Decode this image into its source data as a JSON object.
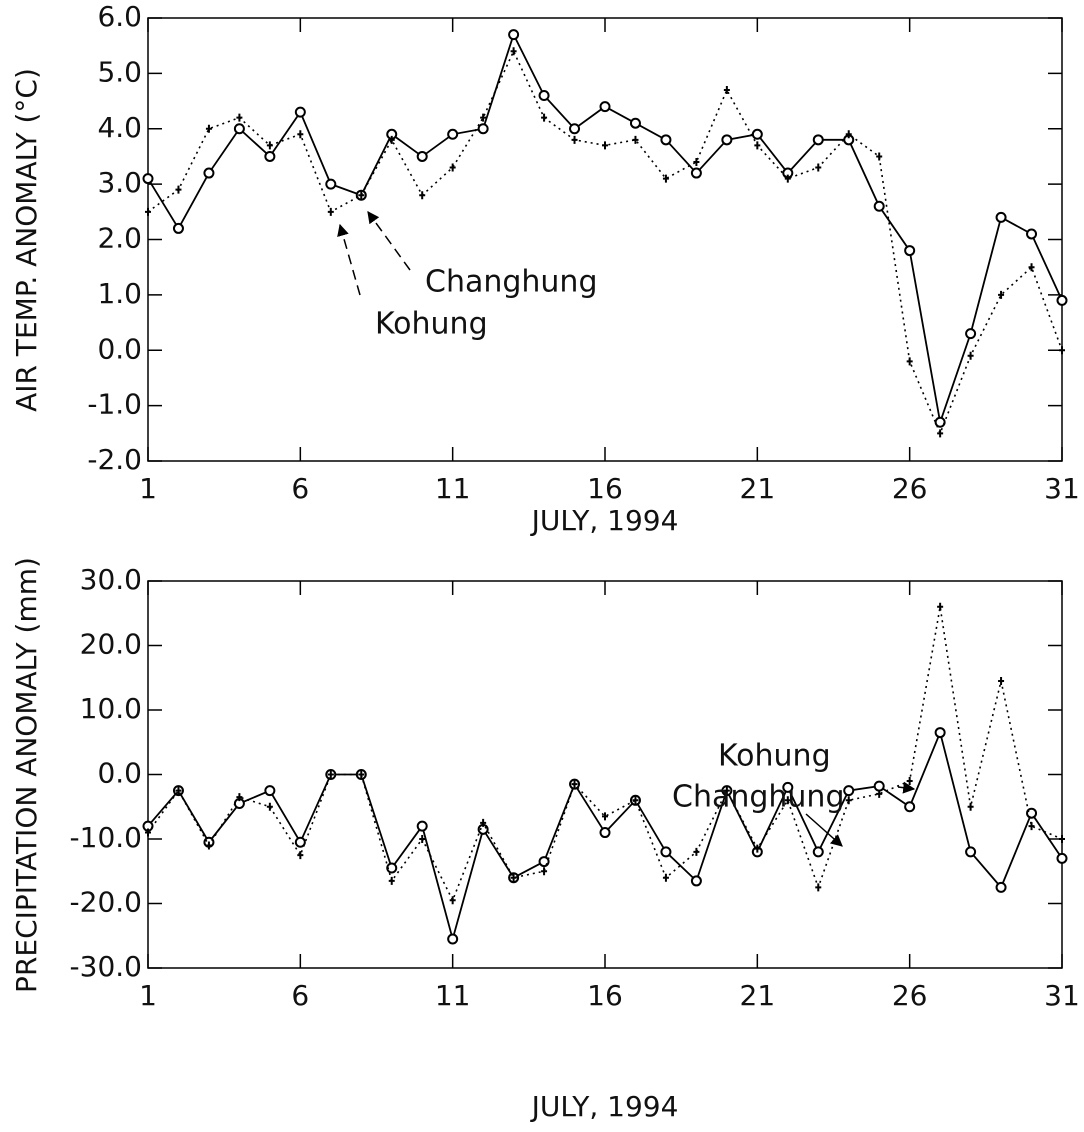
{
  "chart_data": [
    {
      "type": "line",
      "ylabel": "AIR TEMP. ANOMALY (°C)",
      "xlabel": "JULY, 1994",
      "x": [
        1,
        2,
        3,
        4,
        5,
        6,
        7,
        8,
        9,
        10,
        11,
        12,
        13,
        14,
        15,
        16,
        17,
        18,
        19,
        20,
        21,
        22,
        23,
        24,
        25,
        26,
        27,
        28,
        29,
        30,
        31
      ],
      "xlim": [
        1,
        31
      ],
      "xticks": [
        1,
        6,
        11,
        16,
        21,
        26,
        31
      ],
      "ylim": [
        -2,
        6
      ],
      "yticks": [
        {
          "value": -2,
          "label": "-2.0"
        },
        {
          "value": -1,
          "label": "-1.0"
        },
        {
          "value": 0,
          "label": "0.0"
        },
        {
          "value": 1,
          "label": "1.0"
        },
        {
          "value": 2,
          "label": "2.0"
        },
        {
          "value": 3,
          "label": "3.0"
        },
        {
          "value": 4,
          "label": "4.0"
        },
        {
          "value": 5,
          "label": "5.0"
        },
        {
          "value": 6,
          "label": "6.0"
        }
      ],
      "series": [
        {
          "name": "Changhung",
          "color": "#000000",
          "line_style": "solid",
          "marker": "circle",
          "values": [
            3.1,
            2.2,
            3.2,
            4.0,
            3.5,
            4.3,
            3.0,
            2.8,
            3.9,
            3.5,
            3.9,
            4.0,
            5.7,
            4.6,
            4.0,
            4.4,
            4.1,
            3.8,
            3.2,
            3.8,
            3.9,
            3.2,
            3.8,
            3.8,
            2.6,
            1.8,
            -1.3,
            0.3,
            2.4,
            2.1,
            0.9
          ]
        },
        {
          "name": "Kohung",
          "color": "#000000",
          "line_style": "dotted",
          "marker": "plus",
          "values": [
            2.5,
            2.9,
            4.0,
            4.2,
            3.7,
            3.9,
            2.5,
            2.8,
            3.8,
            2.8,
            3.3,
            4.2,
            5.4,
            4.2,
            3.8,
            3.7,
            3.8,
            3.1,
            3.4,
            4.7,
            3.7,
            3.1,
            3.3,
            3.9,
            3.5,
            -0.2,
            -1.5,
            -0.1,
            1.0,
            1.5,
            0.0
          ]
        }
      ],
      "annotations": [
        {
          "text": "Changhung"
        },
        {
          "text": "Kohung"
        }
      ]
    },
    {
      "type": "line",
      "ylabel": "PRECIPITATION ANOMALY (mm)",
      "xlabel": "JULY, 1994",
      "x": [
        1,
        2,
        3,
        4,
        5,
        6,
        7,
        8,
        9,
        10,
        11,
        12,
        13,
        14,
        15,
        16,
        17,
        18,
        19,
        20,
        21,
        22,
        23,
        24,
        25,
        26,
        27,
        28,
        29,
        30,
        31
      ],
      "xlim": [
        1,
        31
      ],
      "xticks": [
        1,
        6,
        11,
        16,
        21,
        26,
        31
      ],
      "ylim": [
        -30,
        30
      ],
      "yticks": [
        {
          "value": -30,
          "label": "-30.0"
        },
        {
          "value": -20,
          "label": "-20.0"
        },
        {
          "value": -10,
          "label": "-10.0"
        },
        {
          "value": 0,
          "label": "0.0"
        },
        {
          "value": 10,
          "label": "10.0"
        },
        {
          "value": 20,
          "label": "20.0"
        },
        {
          "value": 30,
          "label": "30.0"
        }
      ],
      "series": [
        {
          "name": "Changhung",
          "color": "#000000",
          "line_style": "solid",
          "marker": "circle",
          "values": [
            -8,
            -2.5,
            -10.5,
            -4.5,
            -2.5,
            -10.5,
            0,
            0,
            -14.5,
            -8,
            -25.5,
            -8.5,
            -16,
            -13.5,
            -1.5,
            -9,
            -4,
            -12,
            -16.5,
            -2.5,
            -12,
            -2,
            -12,
            -2.5,
            -1.8,
            -5,
            6.5,
            -12,
            -17.5,
            -6,
            -13
          ]
        },
        {
          "name": "Kohung",
          "color": "#000000",
          "line_style": "dotted",
          "marker": "plus",
          "values": [
            -9,
            -2.5,
            -11,
            -3.5,
            -5,
            -12.5,
            0,
            0,
            -16.5,
            -10,
            -19.5,
            -7.5,
            -16,
            -15,
            -1.5,
            -6.5,
            -4,
            -16,
            -12,
            -2.5,
            -11.5,
            -4,
            -17.5,
            -4,
            -3,
            -1,
            26,
            -5,
            14.5,
            -8,
            -10
          ]
        }
      ],
      "annotations": [
        {
          "text": "Kohung"
        },
        {
          "text": "Changhung"
        }
      ]
    }
  ]
}
